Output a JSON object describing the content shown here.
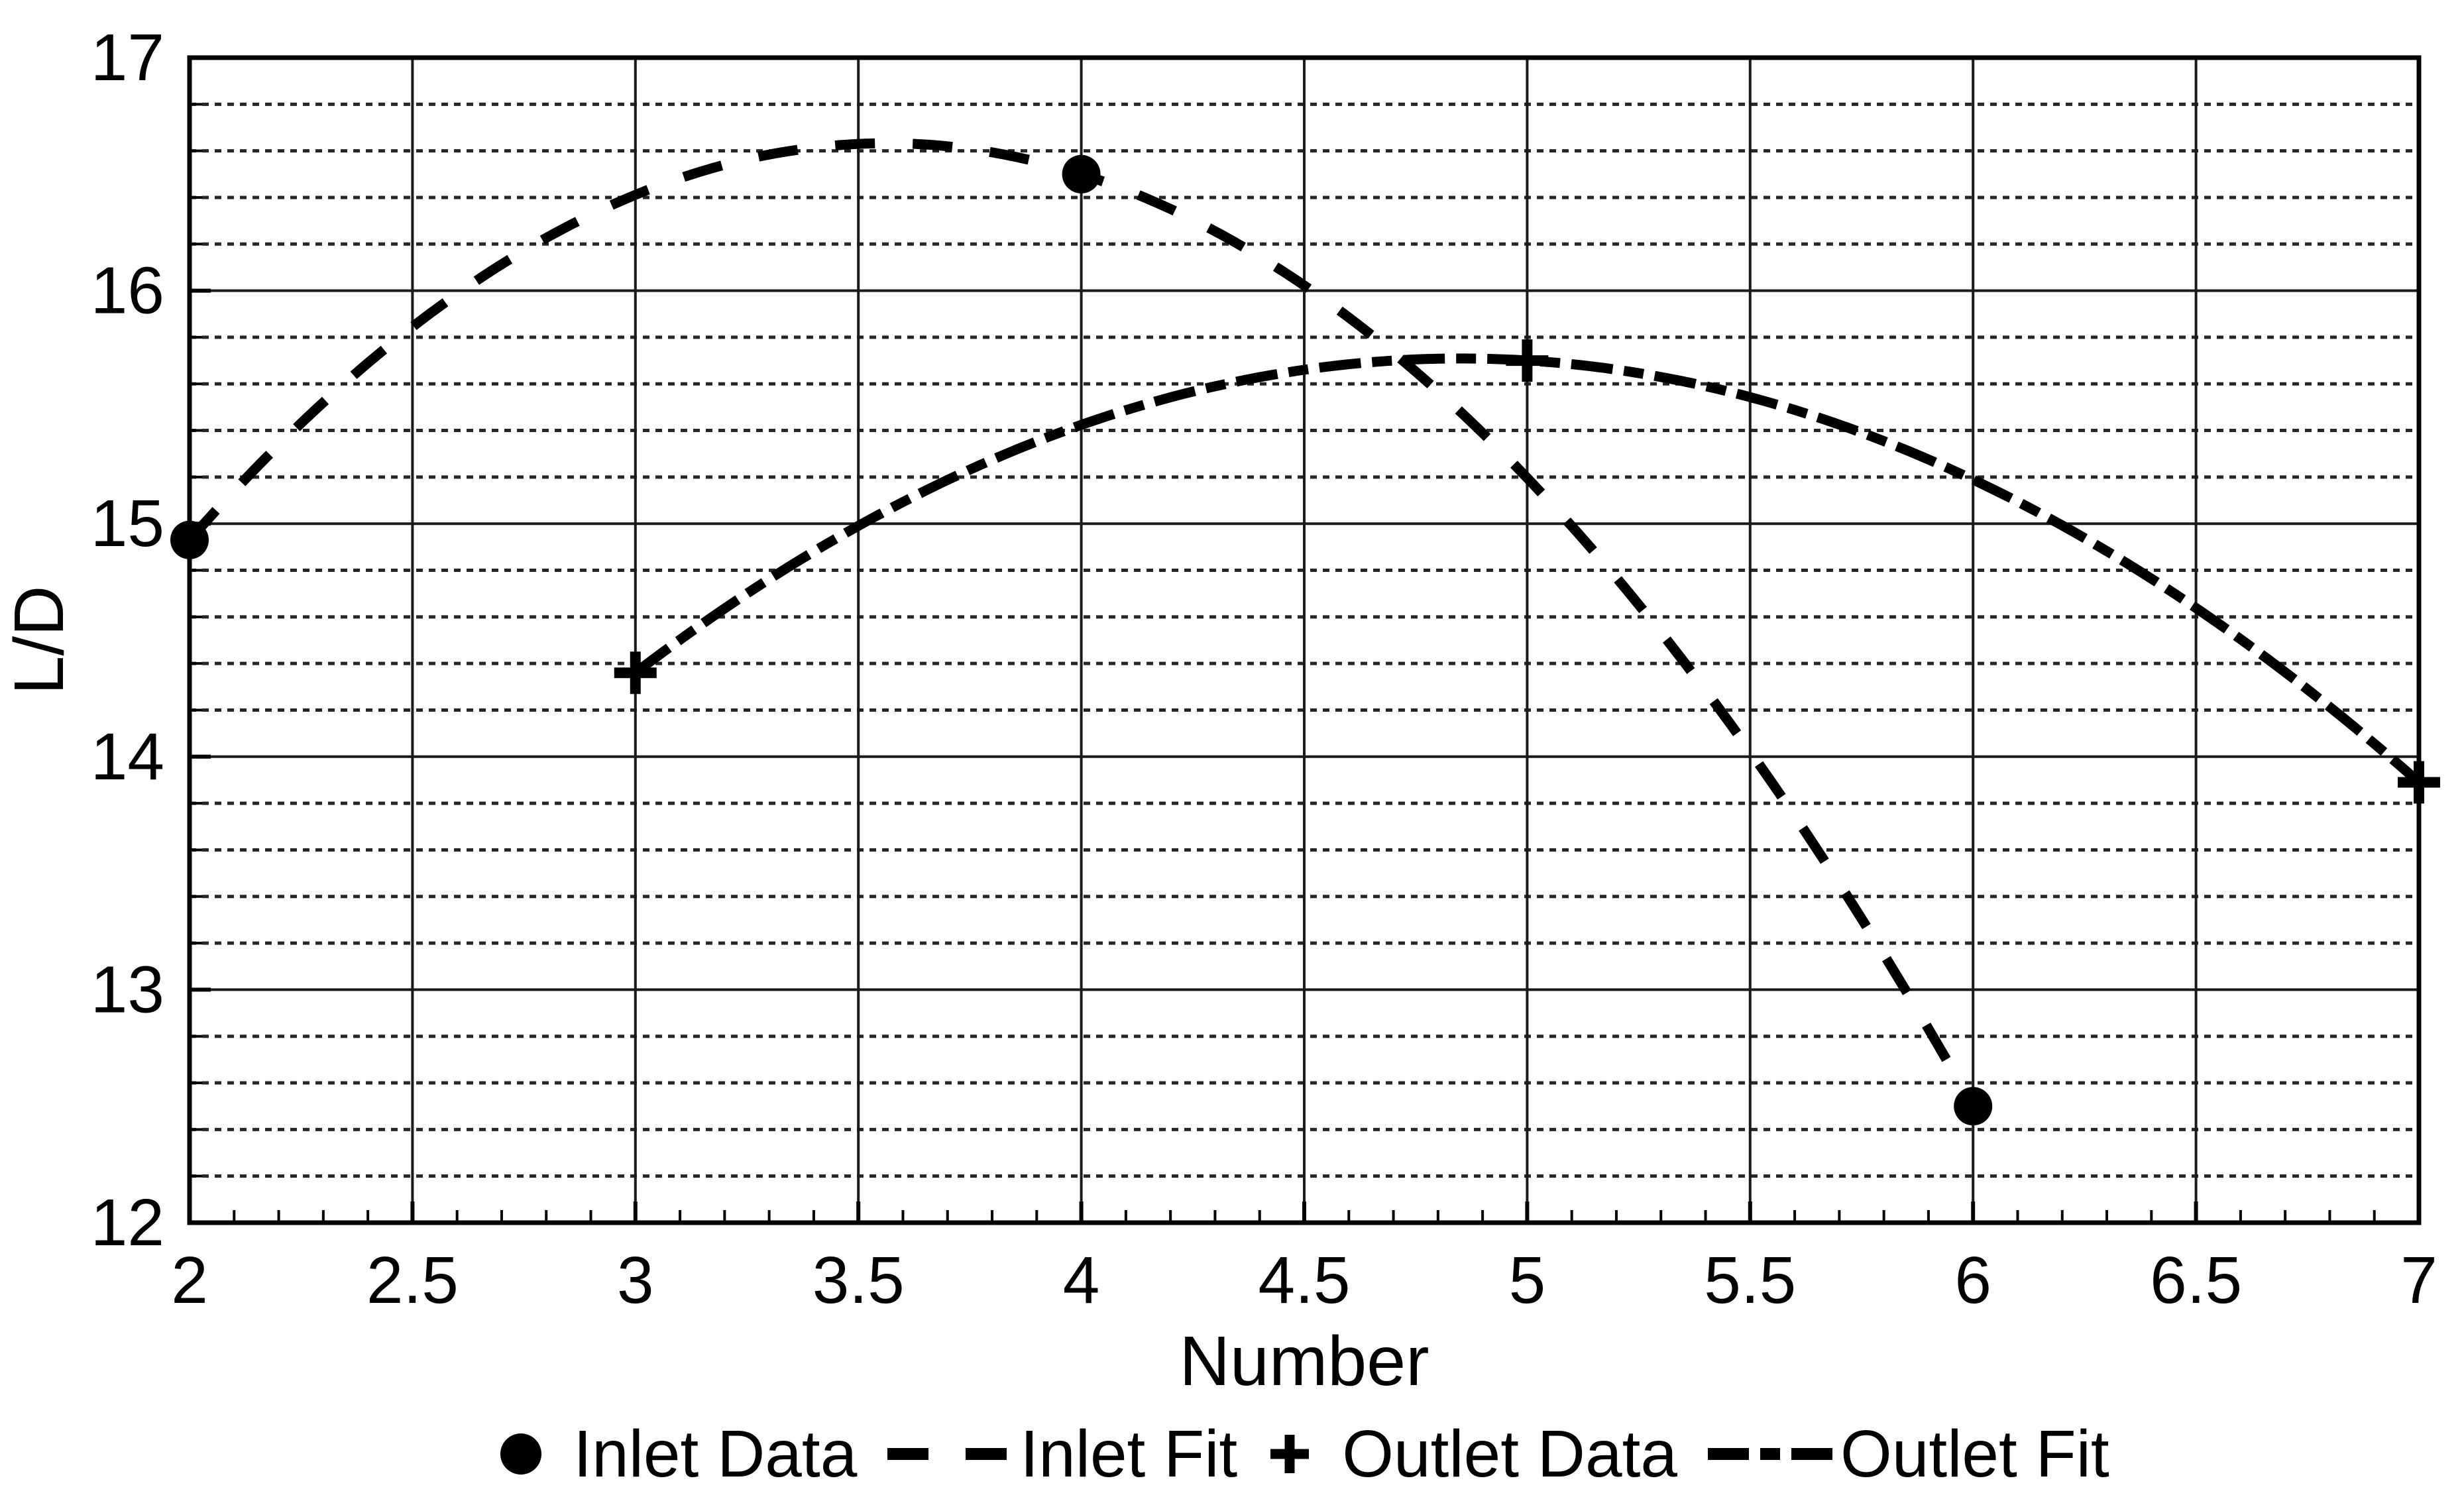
{
  "figure": {
    "background": "#ffffff",
    "axis_color": "#000000",
    "grid_major_color": "#1a1a1a",
    "grid_minor_color": "#262626",
    "data_color": "#000000"
  },
  "axes": {
    "xlabel": "Number",
    "ylabel": "L/D",
    "x_tick_labels": [
      "2",
      "2.5",
      "3",
      "3.5",
      "4",
      "4.5",
      "5",
      "5.5",
      "6",
      "6.5",
      "7"
    ],
    "y_tick_labels": [
      "12",
      "13",
      "14",
      "15",
      "16",
      "17"
    ]
  },
  "legend": {
    "items": [
      {
        "marker": "filled-circle",
        "label": "Inlet Data"
      },
      {
        "marker": "dashed-line",
        "label": "Inlet Fit"
      },
      {
        "marker": "plus",
        "label": "Outlet Data"
      },
      {
        "marker": "dashdot-line",
        "label": "Outlet Fit"
      }
    ]
  },
  "chart_data": {
    "type": "line",
    "title": "",
    "xlabel": "Number",
    "ylabel": "L/D",
    "xlim": [
      2,
      7
    ],
    "ylim": [
      12,
      17
    ],
    "x_major_step": 0.5,
    "x_minor_step": 0.1,
    "y_major_step": 1,
    "y_minor_step": 0.2,
    "grid": "x-major-solid, y-major-solid, y-minor-dotted",
    "legend_position": "below-axis",
    "series": [
      {
        "name": "Inlet Data",
        "type": "scatter",
        "marker": "filled-circle",
        "x": [
          2,
          4,
          6
        ],
        "y": [
          14.93,
          16.5,
          12.5
        ]
      },
      {
        "name": "Inlet Fit",
        "type": "line",
        "linestyle": "dashed",
        "fit": "quadratic",
        "coeffs": {
          "a": -0.69625,
          "b": 4.9625,
          "c": 7.79
        },
        "domain": [
          2,
          6
        ],
        "peak": {
          "x": 3.56,
          "y": 16.63
        }
      },
      {
        "name": "Outlet Data",
        "type": "scatter",
        "marker": "plus",
        "x": [
          3,
          5,
          7
        ],
        "y": [
          14.36,
          15.7,
          13.89
        ]
      },
      {
        "name": "Outlet Fit",
        "type": "line",
        "linestyle": "dashdot",
        "fit": "quadratic",
        "coeffs": {
          "a": -0.39375,
          "b": 3.82,
          "c": 6.444
        },
        "domain": [
          3,
          7
        ],
        "peak": {
          "x": 4.85,
          "y": 15.71
        }
      }
    ]
  }
}
